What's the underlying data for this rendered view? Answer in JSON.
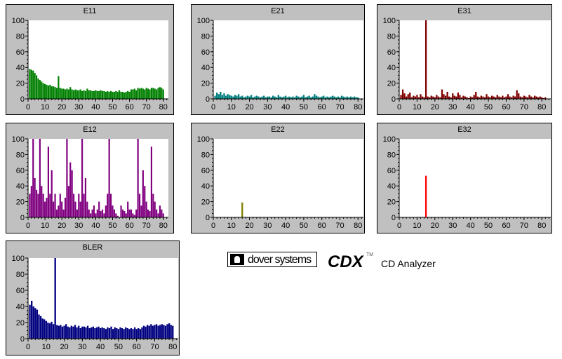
{
  "brand": {
    "company": "dover systems",
    "product": "CDX",
    "trademark": "TM",
    "subtitle": "CD Analyzer"
  },
  "colors": {
    "panel_bg": "#c0c0c0",
    "plot_bg": "#ffffff"
  },
  "chart_data": [
    {
      "type": "bar",
      "title": "E11",
      "color": "#008000",
      "xlim": [
        0,
        83
      ],
      "ylim": [
        0,
        100
      ],
      "xticks": [
        0,
        10,
        20,
        30,
        40,
        50,
        60,
        70,
        80
      ],
      "yticks": [
        0,
        20,
        40,
        60,
        80,
        100
      ],
      "x": [
        1,
        2,
        3,
        4,
        5,
        6,
        7,
        8,
        9,
        10,
        11,
        12,
        13,
        14,
        15,
        16,
        17,
        18,
        19,
        20,
        21,
        22,
        23,
        24,
        25,
        26,
        27,
        28,
        29,
        30,
        31,
        32,
        33,
        34,
        35,
        36,
        37,
        38,
        39,
        40,
        41,
        42,
        43,
        44,
        45,
        46,
        47,
        48,
        49,
        50,
        51,
        52,
        53,
        54,
        55,
        56,
        57,
        58,
        59,
        60,
        61,
        62,
        63,
        64,
        65,
        66,
        67,
        68,
        69,
        70,
        71,
        72,
        73,
        74,
        75,
        76,
        77,
        78,
        79,
        80
      ],
      "values": [
        38,
        37,
        36,
        33,
        30,
        26,
        24,
        22,
        20,
        19,
        18,
        17,
        18,
        16,
        16,
        15,
        14,
        29,
        14,
        13,
        13,
        12,
        13,
        12,
        15,
        12,
        11,
        12,
        11,
        11,
        12,
        10,
        11,
        10,
        13,
        11,
        11,
        10,
        10,
        11,
        10,
        10,
        11,
        10,
        10,
        9,
        10,
        9,
        10,
        9,
        9,
        10,
        9,
        11,
        9,
        9,
        8,
        9,
        10,
        9,
        12,
        12,
        13,
        11,
        14,
        13,
        14,
        13,
        12,
        14,
        13,
        12,
        14,
        14,
        13,
        12,
        14,
        15,
        14,
        12
      ]
    },
    {
      "type": "bar",
      "title": "E21",
      "color": "#008080",
      "xlim": [
        0,
        83
      ],
      "ylim": [
        0,
        100
      ],
      "xticks": [
        0,
        10,
        20,
        30,
        40,
        50,
        60,
        70,
        80
      ],
      "yticks": [
        0,
        20,
        40,
        60,
        80,
        100
      ],
      "x": [
        1,
        2,
        3,
        4,
        5,
        6,
        7,
        8,
        9,
        10,
        11,
        12,
        13,
        14,
        15,
        16,
        17,
        18,
        19,
        20,
        21,
        22,
        23,
        24,
        25,
        26,
        27,
        28,
        29,
        30,
        31,
        32,
        33,
        34,
        35,
        36,
        37,
        38,
        39,
        40,
        41,
        42,
        43,
        44,
        45,
        46,
        47,
        48,
        49,
        50,
        51,
        52,
        53,
        54,
        55,
        56,
        57,
        58,
        59,
        60,
        61,
        62,
        63,
        64,
        65,
        66,
        67,
        68,
        69,
        70,
        71,
        72,
        73,
        74,
        75,
        76,
        77,
        78,
        79,
        80
      ],
      "values": [
        4,
        8,
        6,
        9,
        5,
        7,
        4,
        6,
        5,
        4,
        3,
        5,
        4,
        6,
        3,
        4,
        2,
        3,
        4,
        3,
        5,
        2,
        3,
        4,
        3,
        2,
        3,
        4,
        2,
        3,
        3,
        2,
        4,
        3,
        2,
        5,
        3,
        2,
        3,
        4,
        2,
        3,
        2,
        3,
        2,
        4,
        3,
        2,
        3,
        5,
        2,
        3,
        4,
        2,
        3,
        6,
        4,
        3,
        2,
        3,
        4,
        2,
        3,
        2,
        3,
        4,
        3,
        2,
        3,
        2,
        4,
        3,
        2,
        3,
        2,
        3,
        2,
        3,
        2,
        2
      ]
    },
    {
      "type": "bar",
      "title": "E31",
      "color": "#800000",
      "xlim": [
        0,
        85
      ],
      "ylim": [
        0,
        100
      ],
      "xticks": [
        0,
        10,
        20,
        30,
        40,
        50,
        60,
        70,
        80
      ],
      "yticks": [
        0,
        20,
        40,
        60,
        80,
        100
      ],
      "x": [
        1,
        2,
        3,
        4,
        5,
        6,
        7,
        8,
        9,
        10,
        11,
        12,
        13,
        14,
        15,
        16,
        17,
        18,
        19,
        20,
        21,
        22,
        23,
        24,
        25,
        26,
        27,
        28,
        29,
        30,
        31,
        32,
        33,
        34,
        35,
        36,
        37,
        38,
        39,
        40,
        41,
        42,
        43,
        44,
        45,
        46,
        47,
        48,
        49,
        50,
        51,
        52,
        53,
        54,
        55,
        56,
        57,
        58,
        59,
        60,
        61,
        62,
        63,
        64,
        65,
        66,
        67,
        68,
        69,
        70,
        71,
        72,
        73,
        74,
        75,
        76,
        77,
        78,
        79,
        80,
        81,
        82
      ],
      "values": [
        5,
        12,
        7,
        3,
        6,
        8,
        2,
        4,
        3,
        5,
        2,
        6,
        3,
        2,
        100,
        3,
        2,
        4,
        3,
        2,
        5,
        3,
        2,
        12,
        6,
        4,
        9,
        3,
        2,
        7,
        4,
        3,
        8,
        5,
        2,
        4,
        3,
        2,
        1,
        3,
        2,
        5,
        9,
        3,
        2,
        4,
        3,
        2,
        6,
        3,
        2,
        4,
        3,
        2,
        5,
        3,
        2,
        4,
        2,
        3,
        6,
        3,
        2,
        4,
        3,
        11,
        7,
        3,
        2,
        4,
        3,
        2,
        5,
        3,
        2,
        4,
        3,
        2,
        3,
        2,
        1,
        2
      ]
    },
    {
      "type": "bar",
      "title": "E12",
      "color": "#800080",
      "xlim": [
        0,
        83
      ],
      "ylim": [
        0,
        100
      ],
      "xticks": [
        0,
        10,
        20,
        30,
        40,
        50,
        60,
        70,
        80
      ],
      "yticks": [
        0,
        20,
        40,
        60,
        80,
        100
      ],
      "x": [
        1,
        2,
        3,
        4,
        5,
        6,
        7,
        8,
        9,
        10,
        11,
        12,
        13,
        14,
        15,
        16,
        17,
        18,
        19,
        20,
        21,
        22,
        23,
        24,
        25,
        26,
        27,
        28,
        29,
        30,
        31,
        32,
        33,
        34,
        35,
        36,
        37,
        38,
        39,
        40,
        41,
        42,
        43,
        44,
        45,
        46,
        47,
        48,
        49,
        50,
        51,
        52,
        53,
        54,
        55,
        56,
        57,
        58,
        59,
        60,
        61,
        62,
        63,
        64,
        65,
        66,
        67,
        68,
        69,
        70,
        71,
        72,
        73,
        74,
        75,
        76,
        77,
        78,
        79,
        80
      ],
      "values": [
        30,
        40,
        100,
        50,
        35,
        30,
        100,
        40,
        30,
        20,
        25,
        90,
        30,
        60,
        20,
        30,
        10,
        15,
        30,
        20,
        10,
        25,
        100,
        40,
        70,
        60,
        30,
        20,
        10,
        30,
        20,
        100,
        30,
        50,
        20,
        10,
        5,
        10,
        15,
        5,
        10,
        20,
        8,
        10,
        5,
        15,
        30,
        100,
        30,
        15,
        10,
        5,
        2,
        0,
        15,
        10,
        8,
        5,
        20,
        10,
        10,
        5,
        3,
        10,
        100,
        30,
        15,
        60,
        40,
        20,
        10,
        8,
        90,
        30,
        20,
        10,
        5,
        15,
        10,
        5
      ]
    },
    {
      "type": "bar",
      "title": "E22",
      "color": "#808000",
      "xlim": [
        0,
        83
      ],
      "ylim": [
        0,
        100
      ],
      "xticks": [
        0,
        10,
        20,
        30,
        40,
        50,
        60,
        70,
        80
      ],
      "yticks": [
        0,
        20,
        40,
        60,
        80,
        100
      ],
      "x": [
        16
      ],
      "values": [
        19
      ]
    },
    {
      "type": "bar",
      "title": "E32",
      "color": "#ff0000",
      "xlim": [
        0,
        85
      ],
      "ylim": [
        0,
        100
      ],
      "xticks": [
        0,
        10,
        20,
        30,
        40,
        50,
        60,
        70,
        80
      ],
      "yticks": [
        0,
        20,
        40,
        60,
        80,
        100
      ],
      "x": [
        15
      ],
      "values": [
        53
      ]
    },
    {
      "type": "bar",
      "title": "BLER",
      "color": "#000080",
      "xlim": [
        0,
        83
      ],
      "ylim": [
        0,
        100
      ],
      "xticks": [
        0,
        10,
        20,
        30,
        40,
        50,
        60,
        70,
        80
      ],
      "yticks": [
        0,
        20,
        40,
        60,
        80,
        100
      ],
      "x": [
        1,
        2,
        3,
        4,
        5,
        6,
        7,
        8,
        9,
        10,
        11,
        12,
        13,
        14,
        15,
        16,
        17,
        18,
        19,
        20,
        21,
        22,
        23,
        24,
        25,
        26,
        27,
        28,
        29,
        30,
        31,
        32,
        33,
        34,
        35,
        36,
        37,
        38,
        39,
        40,
        41,
        42,
        43,
        44,
        45,
        46,
        47,
        48,
        49,
        50,
        51,
        52,
        53,
        54,
        55,
        56,
        57,
        58,
        59,
        60,
        61,
        62,
        63,
        64,
        65,
        66,
        67,
        68,
        69,
        70,
        71,
        72,
        73,
        74,
        75,
        76,
        77,
        78,
        79,
        80
      ],
      "values": [
        42,
        47,
        40,
        38,
        36,
        30,
        28,
        25,
        24,
        22,
        20,
        19,
        21,
        18,
        100,
        17,
        16,
        17,
        15,
        16,
        18,
        15,
        14,
        16,
        15,
        17,
        14,
        16,
        13,
        15,
        15,
        14,
        16,
        13,
        14,
        15,
        13,
        14,
        15,
        13,
        14,
        13,
        12,
        14,
        13,
        15,
        12,
        14,
        13,
        12,
        14,
        13,
        12,
        14,
        13,
        12,
        13,
        12,
        14,
        12,
        13,
        12,
        14,
        16,
        15,
        17,
        16,
        18,
        16,
        17,
        18,
        16,
        17,
        18,
        17,
        16,
        18,
        19,
        17,
        16
      ]
    }
  ]
}
